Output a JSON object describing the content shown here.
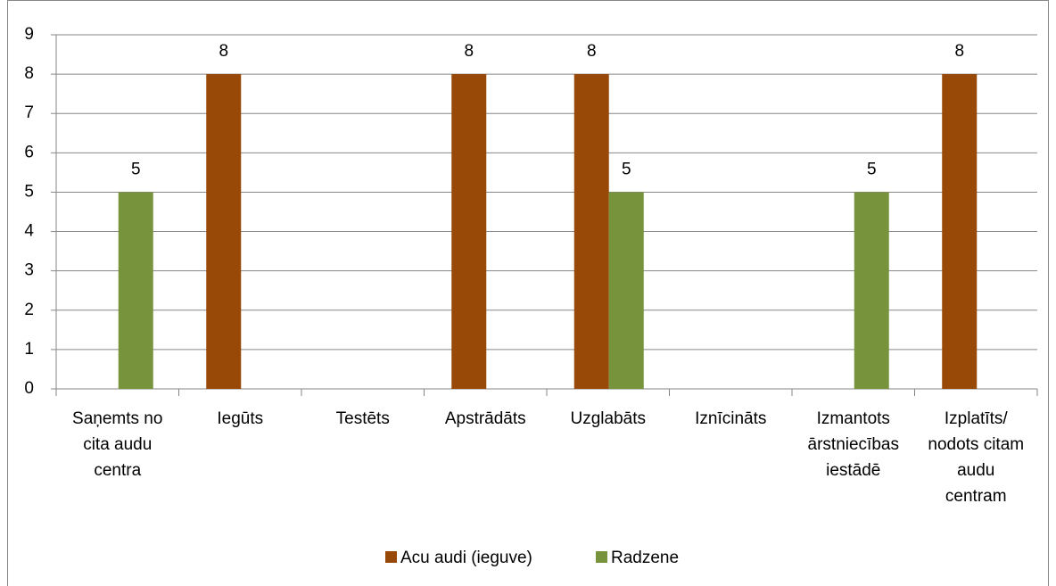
{
  "chart_data": {
    "type": "bar",
    "categories": [
      "Saņemts no cita audu centra",
      "Iegūts",
      "Testēts",
      "Apstrādāts",
      "Uzglabāts",
      "Iznīcināts",
      "Izmantots ārstniecības iestādē",
      "Izplatīts/ nodots citam audu centram"
    ],
    "series": [
      {
        "name": "Acu audi (ieguve)",
        "color": "#984807",
        "values": [
          null,
          8,
          null,
          8,
          8,
          null,
          null,
          8
        ]
      },
      {
        "name": "Radzene",
        "color": "#77933c",
        "values": [
          5,
          null,
          null,
          null,
          5,
          null,
          5,
          null
        ]
      }
    ],
    "ylim": [
      0,
      9
    ],
    "yticks": [
      0,
      1,
      2,
      3,
      4,
      5,
      6,
      7,
      8,
      9
    ],
    "grid": true,
    "legend": "bottom"
  }
}
